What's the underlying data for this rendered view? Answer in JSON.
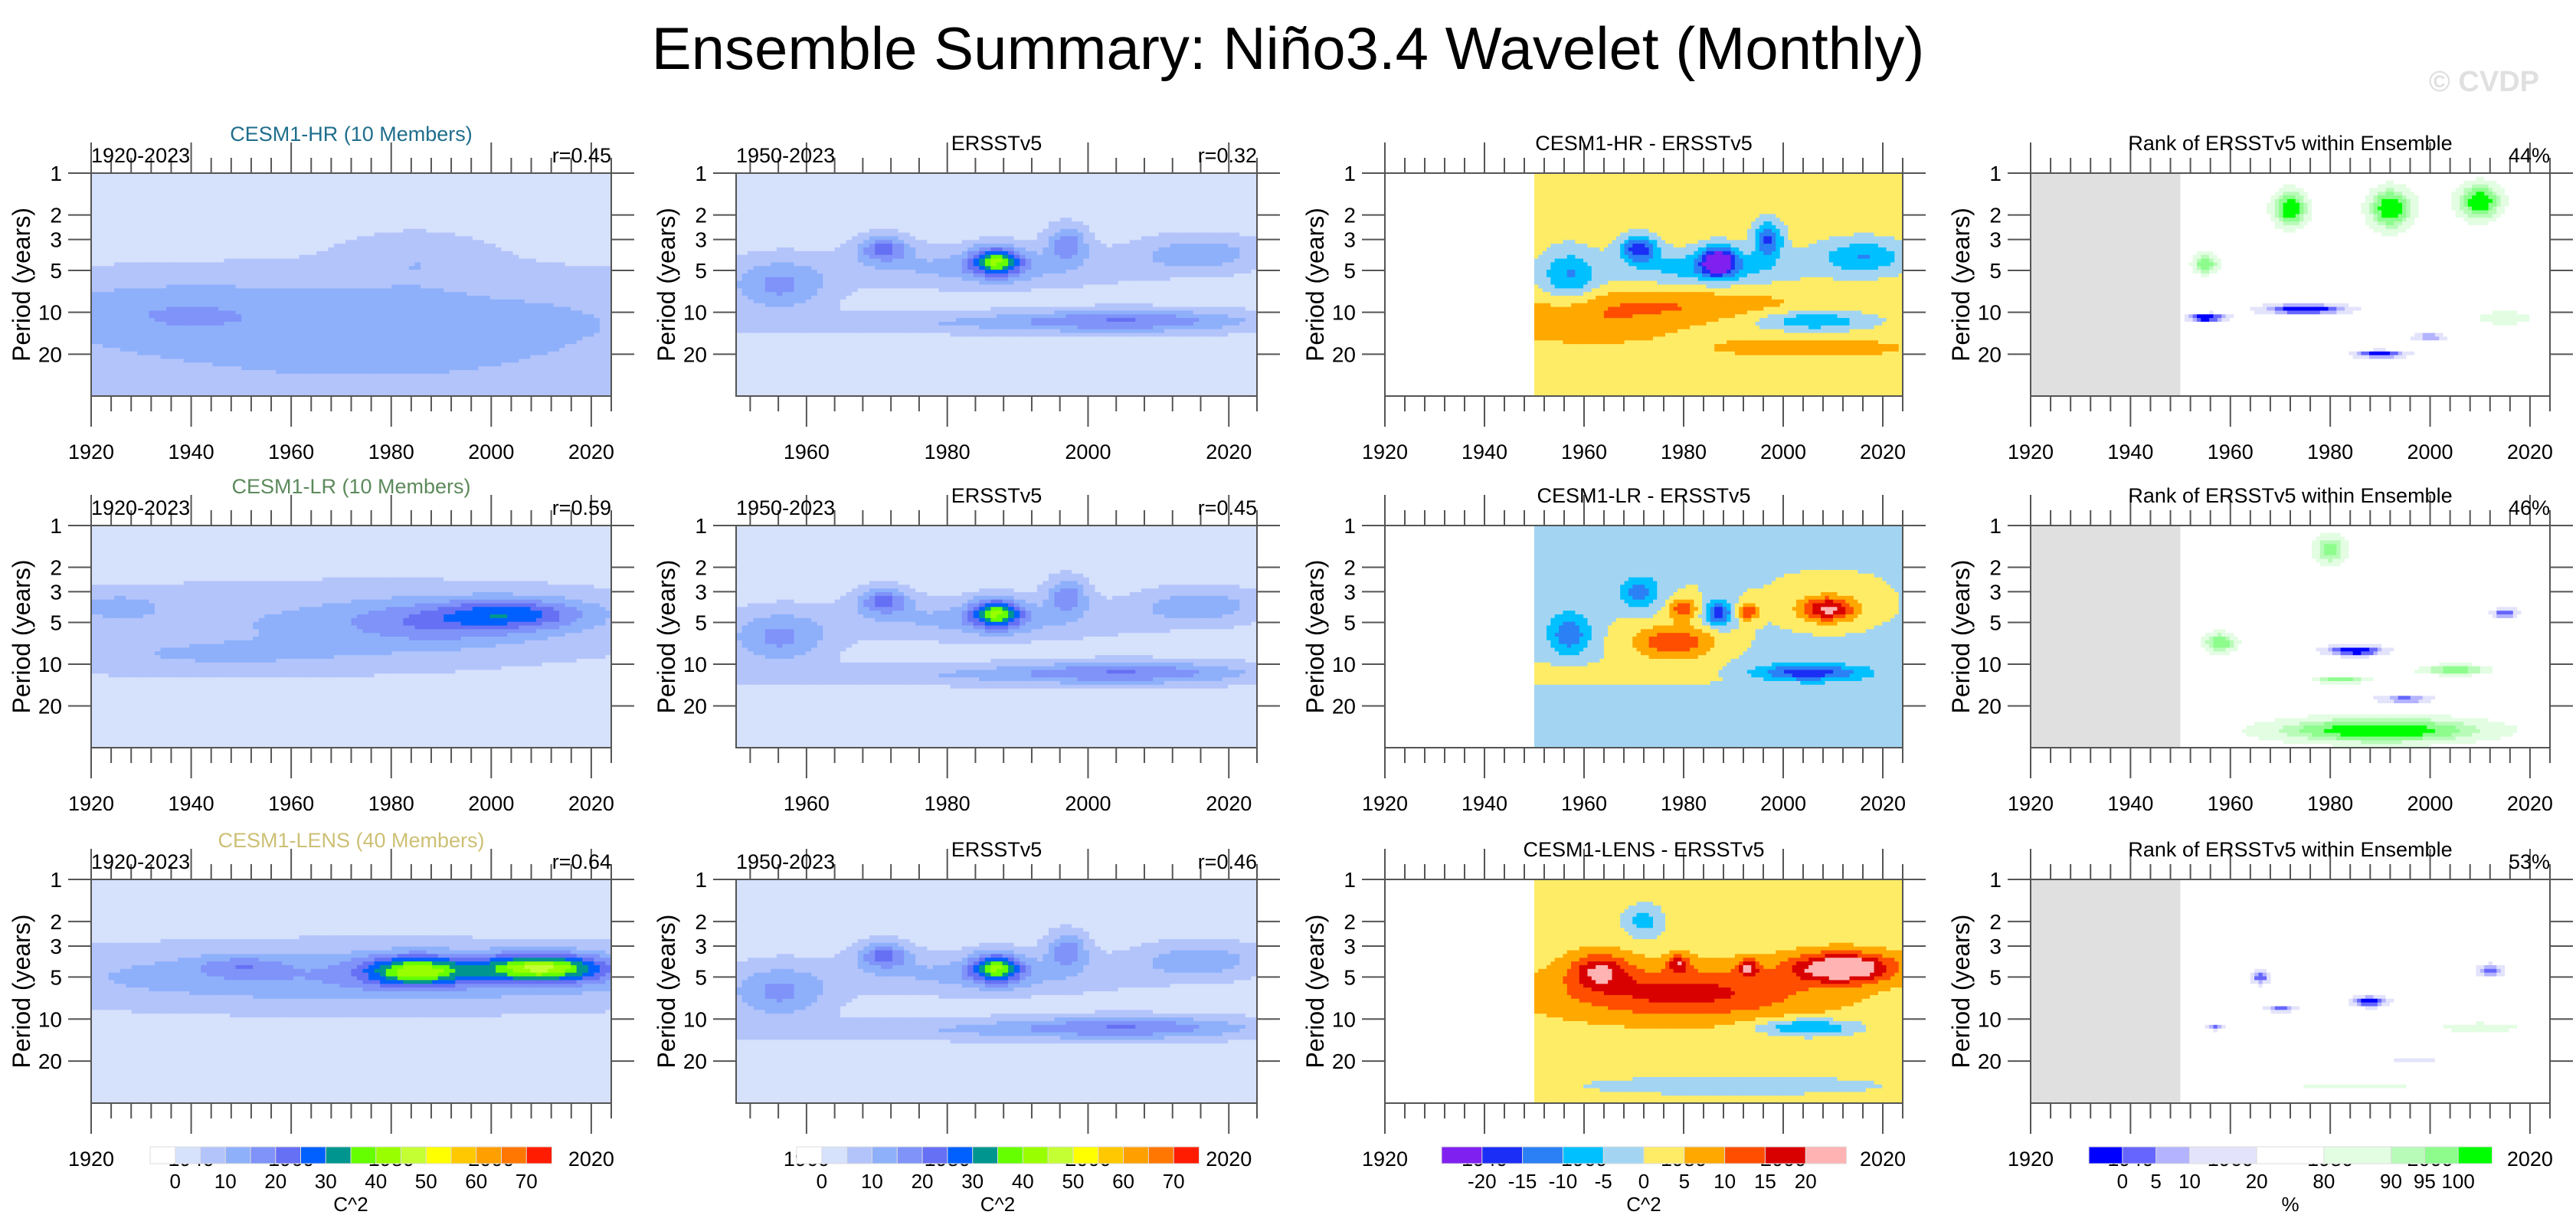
{
  "figure": {
    "title": "Ensemble Summary: Niño3.4 Wavelet (Monthly)",
    "watermark": "© CVDP"
  },
  "colorbars": {
    "power": {
      "label": "C^2",
      "levels": [
        0,
        5,
        10,
        15,
        20,
        25,
        30,
        35,
        40,
        45,
        50,
        55,
        60,
        65,
        70
      ],
      "tick_labels": [
        "0",
        "10",
        "20",
        "30",
        "40",
        "50",
        "60",
        "70"
      ],
      "tick_values": [
        0,
        10,
        20,
        30,
        40,
        50,
        60,
        70
      ],
      "colors": [
        "#ffffff",
        "#d6e1fc",
        "#b3c4fb",
        "#8eb0fb",
        "#7f93f9",
        "#6670f4",
        "#0060ff",
        "#00968f",
        "#66ff00",
        "#99ff00",
        "#c4ff33",
        "#ffff00",
        "#ffc800",
        "#ff9f00",
        "#ff7700",
        "#ff1c00"
      ]
    },
    "difference": {
      "label": "C^2",
      "levels": [
        -20,
        -15,
        -10,
        -5,
        0,
        5,
        10,
        15,
        20
      ],
      "tick_labels": [
        "-20",
        "-15",
        "-10",
        "-5",
        "0",
        "5",
        "10",
        "15",
        "20"
      ],
      "colors": [
        "#8020f0",
        "#1a2ef5",
        "#2b80f5",
        "#00c0ff",
        "#a3d5f2",
        "#ffec66",
        "#ffa800",
        "#ff4e00",
        "#d90000",
        "#ffb3b3"
      ]
    },
    "rank": {
      "label": "%",
      "levels": [
        0,
        5,
        10,
        20,
        80,
        90,
        95,
        100
      ],
      "tick_labels": [
        "0",
        "5",
        "10",
        "20",
        "80",
        "90",
        "95",
        "100"
      ],
      "colors": [
        "#0000ff",
        "#6666ff",
        "#b3b3ff",
        "#e3e3fb",
        "#ffffff",
        "#e3fde3",
        "#b8fbb8",
        "#8dfc8d",
        "#00ff00"
      ]
    }
  },
  "axes": {
    "ylabel": "Period (years)",
    "yticks": [
      1,
      2,
      3,
      5,
      10,
      20
    ],
    "ylim": [
      1,
      40
    ],
    "xticks": [
      1920,
      1940,
      1960,
      1980,
      2000,
      2020
    ],
    "xlim_model": [
      1920,
      2024
    ],
    "xlim_obs": [
      1950,
      2024
    ],
    "obs_start": 1950
  },
  "chart_data": [
    {
      "type": "heatmap",
      "row": 0,
      "col": 0,
      "kind": "power",
      "title": "CESM1-HR (10 Members)",
      "title_color": "#1f6e8c",
      "left_label": "1920-2023",
      "right_label": "r=0.45",
      "xlim": [
        1920,
        2024
      ],
      "ylim": [
        1,
        40
      ],
      "base": 3,
      "features": [
        {
          "year": 1975,
          "period": 11,
          "sx": 60,
          "sp": 0.55,
          "amp": 9
        },
        {
          "year": 1935,
          "period": 10,
          "sx": 18,
          "sp": 0.35,
          "amp": 5
        },
        {
          "year": 1985,
          "period": 4,
          "sx": 10,
          "sp": 0.3,
          "amp": 5
        },
        {
          "year": 1975,
          "period": 30,
          "sx": 60,
          "sp": 0.45,
          "amp": 5
        }
      ]
    },
    {
      "type": "heatmap",
      "row": 0,
      "col": 1,
      "kind": "power",
      "title": "ERSSTv5",
      "title_color": "#000000",
      "left_label": "1950-2023",
      "right_label": "r=0.32",
      "xlim": [
        1950,
        2024
      ],
      "ylim": [
        1,
        40
      ],
      "base": 3,
      "features": [
        {
          "year": 1987,
          "period": 4.3,
          "sx": 2.5,
          "sp": 0.17,
          "amp": 30
        },
        {
          "year": 1971,
          "period": 3.5,
          "sx": 2.5,
          "sp": 0.15,
          "amp": 18
        },
        {
          "year": 1997,
          "period": 3.2,
          "sx": 2,
          "sp": 0.2,
          "amp": 15
        },
        {
          "year": 1985,
          "period": 4.8,
          "sx": 14,
          "sp": 0.22,
          "amp": 9
        },
        {
          "year": 1956,
          "period": 6.5,
          "sx": 5,
          "sp": 0.3,
          "amp": 13
        },
        {
          "year": 2006,
          "period": 11.5,
          "sx": 12,
          "sp": 0.13,
          "amp": 14
        },
        {
          "year": 2016,
          "period": 3.8,
          "sx": 6,
          "sp": 0.2,
          "amp": 11
        },
        {
          "year": 1980,
          "period": 12,
          "sx": 25,
          "sp": 0.12,
          "amp": 6
        }
      ]
    },
    {
      "type": "heatmap",
      "row": 0,
      "col": 2,
      "kind": "difference",
      "title": "CESM1-HR - ERSSTv5",
      "title_color": "#000000",
      "left_label": "",
      "right_label": "",
      "xlim": [
        1920,
        2024
      ],
      "ylim": [
        1,
        40
      ],
      "base": 2,
      "features": [
        {
          "year": 1987,
          "period": 4.3,
          "sx": 2.5,
          "sp": 0.17,
          "amp": -26
        },
        {
          "year": 1971,
          "period": 3.5,
          "sx": 2.5,
          "sp": 0.15,
          "amp": -20
        },
        {
          "year": 1997,
          "period": 3.0,
          "sx": 2,
          "sp": 0.2,
          "amp": -18
        },
        {
          "year": 1985,
          "period": 4.8,
          "sx": 12,
          "sp": 0.2,
          "amp": -10
        },
        {
          "year": 1957,
          "period": 5.5,
          "sx": 4,
          "sp": 0.3,
          "amp": -12
        },
        {
          "year": 2016,
          "period": 4,
          "sx": 6,
          "sp": 0.2,
          "amp": -12
        },
        {
          "year": 2006,
          "period": 11.5,
          "sx": 8,
          "sp": 0.12,
          "amp": -12
        },
        {
          "year": 1975,
          "period": 9,
          "sx": 20,
          "sp": 0.2,
          "amp": 8
        },
        {
          "year": 1960,
          "period": 13,
          "sx": 12,
          "sp": 0.2,
          "amp": 6
        },
        {
          "year": 2005,
          "period": 18,
          "sx": 18,
          "sp": 0.15,
          "amp": 5
        }
      ]
    },
    {
      "type": "heatmap",
      "row": 0,
      "col": 3,
      "kind": "rank",
      "title": "Rank of ERSSTv5 within Ensemble",
      "title_color": "#000000",
      "left_label": "",
      "right_label": "44%",
      "xlim": [
        1920,
        2024
      ],
      "ylim": [
        1,
        40
      ],
      "base": 50,
      "features": [
        {
          "year": 1972,
          "period": 1.8,
          "sx": 4,
          "sp": 0.35,
          "amp": 55
        },
        {
          "year": 1992,
          "period": 1.8,
          "sx": 5,
          "sp": 0.4,
          "amp": 55
        },
        {
          "year": 2010,
          "period": 1.6,
          "sx": 5,
          "sp": 0.35,
          "amp": 55
        },
        {
          "year": 1955,
          "period": 4.5,
          "sx": 3,
          "sp": 0.2,
          "amp": 50
        },
        {
          "year": 1975,
          "period": 9.5,
          "sx": 10,
          "sp": 0.1,
          "amp": -55
        },
        {
          "year": 1955,
          "period": 11,
          "sx": 4,
          "sp": 0.07,
          "amp": -55
        },
        {
          "year": 1990,
          "period": 20,
          "sx": 6,
          "sp": 0.07,
          "amp": -55
        },
        {
          "year": 2000,
          "period": 15,
          "sx": 4,
          "sp": 0.06,
          "amp": -50
        },
        {
          "year": 2015,
          "period": 11,
          "sx": 8,
          "sp": 0.15,
          "amp": 38
        }
      ]
    },
    {
      "type": "heatmap",
      "row": 1,
      "col": 0,
      "kind": "power",
      "title": "CESM1-LR (10 Members)",
      "title_color": "#5c8a5c",
      "left_label": "1920-2023",
      "right_label": "r=0.59",
      "xlim": [
        1920,
        2024
      ],
      "ylim": [
        1,
        40
      ],
      "base": 3,
      "features": [
        {
          "year": 2005,
          "period": 4.3,
          "sx": 10,
          "sp": 0.17,
          "amp": 16
        },
        {
          "year": 1990,
          "period": 5,
          "sx": 14,
          "sp": 0.25,
          "amp": 11
        },
        {
          "year": 1970,
          "period": 5,
          "sx": 50,
          "sp": 0.45,
          "amp": 7
        },
        {
          "year": 1925,
          "period": 3.8,
          "sx": 6,
          "sp": 0.15,
          "amp": 6
        },
        {
          "year": 1945,
          "period": 9,
          "sx": 30,
          "sp": 0.2,
          "amp": 5
        }
      ]
    },
    {
      "type": "heatmap",
      "row": 1,
      "col": 1,
      "kind": "power",
      "title": "ERSSTv5",
      "title_color": "#000000",
      "left_label": "1950-2023",
      "right_label": "r=0.45",
      "xlim": [
        1950,
        2024
      ],
      "ylim": [
        1,
        40
      ],
      "base": 3,
      "features": [
        {
          "year": 1987,
          "period": 4.3,
          "sx": 2.5,
          "sp": 0.17,
          "amp": 30
        },
        {
          "year": 1971,
          "period": 3.5,
          "sx": 2.5,
          "sp": 0.15,
          "amp": 18
        },
        {
          "year": 1997,
          "period": 3.2,
          "sx": 2,
          "sp": 0.2,
          "amp": 15
        },
        {
          "year": 1985,
          "period": 4.8,
          "sx": 14,
          "sp": 0.22,
          "amp": 9
        },
        {
          "year": 1956,
          "period": 6.5,
          "sx": 5,
          "sp": 0.3,
          "amp": 13
        },
        {
          "year": 2006,
          "period": 11.5,
          "sx": 12,
          "sp": 0.13,
          "amp": 14
        },
        {
          "year": 2016,
          "period": 3.8,
          "sx": 6,
          "sp": 0.2,
          "amp": 11
        },
        {
          "year": 1980,
          "period": 12,
          "sx": 25,
          "sp": 0.12,
          "amp": 6
        }
      ]
    },
    {
      "type": "heatmap",
      "row": 1,
      "col": 2,
      "kind": "difference",
      "title": "CESM1-LR - ERSSTv5",
      "title_color": "#000000",
      "left_label": "",
      "right_label": "",
      "xlim": [
        1920,
        2024
      ],
      "ylim": [
        1,
        40
      ],
      "base": 0,
      "features": [
        {
          "year": 2009,
          "period": 4,
          "sx": 4,
          "sp": 0.15,
          "amp": 22
        },
        {
          "year": 1978,
          "period": 7,
          "sx": 6,
          "sp": 0.2,
          "amp": 15
        },
        {
          "year": 1980,
          "period": 4,
          "sx": 2,
          "sp": 0.12,
          "amp": 14
        },
        {
          "year": 1993,
          "period": 4.2,
          "sx": 1.5,
          "sp": 0.1,
          "amp": 15
        },
        {
          "year": 1987,
          "period": 4.3,
          "sx": 2,
          "sp": 0.15,
          "amp": -18
        },
        {
          "year": 1957,
          "period": 6,
          "sx": 3,
          "sp": 0.25,
          "amp": -14
        },
        {
          "year": 1971,
          "period": 3,
          "sx": 3,
          "sp": 0.2,
          "amp": -12
        },
        {
          "year": 2005,
          "period": 11.5,
          "sx": 8,
          "sp": 0.1,
          "amp": -18
        },
        {
          "year": 1990,
          "period": 22,
          "sx": 40,
          "sp": 0.6,
          "amp": -3
        },
        {
          "year": 1970,
          "period": 12,
          "sx": 25,
          "sp": 0.15,
          "amp": 4
        }
      ]
    },
    {
      "type": "heatmap",
      "row": 1,
      "col": 3,
      "kind": "rank",
      "title": "Rank of ERSSTv5 within Ensemble",
      "title_color": "#000000",
      "left_label": "",
      "right_label": "46%",
      "xlim": [
        1920,
        2024
      ],
      "ylim": [
        1,
        40
      ],
      "base": 50,
      "features": [
        {
          "year": 1990,
          "period": 30,
          "sx": 25,
          "sp": 0.25,
          "amp": 55
        },
        {
          "year": 1985,
          "period": 8,
          "sx": 7,
          "sp": 0.1,
          "amp": -55
        },
        {
          "year": 1995,
          "period": 18,
          "sx": 7,
          "sp": 0.08,
          "amp": -55
        },
        {
          "year": 2005,
          "period": 11,
          "sx": 8,
          "sp": 0.1,
          "amp": 50
        },
        {
          "year": 1958,
          "period": 7,
          "sx": 4,
          "sp": 0.2,
          "amp": 50
        },
        {
          "year": 1980,
          "period": 1.5,
          "sx": 4,
          "sp": 0.3,
          "amp": 48
        },
        {
          "year": 2015,
          "period": 4.3,
          "sx": 3,
          "sp": 0.1,
          "amp": -50
        },
        {
          "year": 1982,
          "period": 13,
          "sx": 6,
          "sp": 0.06,
          "amp": 50
        }
      ]
    },
    {
      "type": "heatmap",
      "row": 2,
      "col": 0,
      "kind": "power",
      "title": "CESM1-LENS (40 Members)",
      "title_color": "#cdc075",
      "left_label": "1920-2023",
      "right_label": "r=0.64",
      "xlim": [
        1920,
        2024
      ],
      "ylim": [
        1,
        40
      ],
      "base": 3,
      "features": [
        {
          "year": 2010,
          "period": 4.3,
          "sx": 9,
          "sp": 0.16,
          "amp": 35
        },
        {
          "year": 1985,
          "period": 4.5,
          "sx": 7,
          "sp": 0.17,
          "amp": 30
        },
        {
          "year": 1975,
          "period": 5,
          "sx": 50,
          "sp": 0.35,
          "amp": 12
        },
        {
          "year": 1950,
          "period": 4.2,
          "sx": 6,
          "sp": 0.12,
          "amp": 8
        }
      ]
    },
    {
      "type": "heatmap",
      "row": 2,
      "col": 1,
      "kind": "power",
      "title": "ERSSTv5",
      "title_color": "#000000",
      "left_label": "1950-2023",
      "right_label": "r=0.46",
      "xlim": [
        1950,
        2024
      ],
      "ylim": [
        1,
        40
      ],
      "base": 3,
      "features": [
        {
          "year": 1987,
          "period": 4.3,
          "sx": 2.5,
          "sp": 0.17,
          "amp": 30
        },
        {
          "year": 1971,
          "period": 3.5,
          "sx": 2.5,
          "sp": 0.15,
          "amp": 18
        },
        {
          "year": 1997,
          "period": 3.2,
          "sx": 2,
          "sp": 0.2,
          "amp": 15
        },
        {
          "year": 1985,
          "period": 4.8,
          "sx": 14,
          "sp": 0.22,
          "amp": 9
        },
        {
          "year": 1956,
          "period": 6.5,
          "sx": 5,
          "sp": 0.3,
          "amp": 13
        },
        {
          "year": 2006,
          "period": 11.5,
          "sx": 12,
          "sp": 0.13,
          "amp": 14
        },
        {
          "year": 2016,
          "period": 3.8,
          "sx": 6,
          "sp": 0.2,
          "amp": 11
        },
        {
          "year": 1980,
          "period": 12,
          "sx": 25,
          "sp": 0.12,
          "amp": 6
        }
      ]
    },
    {
      "type": "heatmap",
      "row": 2,
      "col": 2,
      "kind": "difference",
      "title": "CESM1-LENS - ERSSTv5",
      "title_color": "#000000",
      "left_label": "",
      "right_label": "",
      "xlim": [
        1920,
        2024
      ],
      "ylim": [
        1,
        40
      ],
      "base": 3,
      "features": [
        {
          "year": 2012,
          "period": 4.3,
          "sx": 7,
          "sp": 0.17,
          "amp": 26
        },
        {
          "year": 1980,
          "period": 6.5,
          "sx": 18,
          "sp": 0.3,
          "amp": 14
        },
        {
          "year": 1963,
          "period": 4.5,
          "sx": 4,
          "sp": 0.2,
          "amp": 15
        },
        {
          "year": 1979,
          "period": 4,
          "sx": 1.5,
          "sp": 0.1,
          "amp": 14
        },
        {
          "year": 1993,
          "period": 4.3,
          "sx": 1.5,
          "sp": 0.1,
          "amp": 14
        },
        {
          "year": 2005,
          "period": 11.5,
          "sx": 7,
          "sp": 0.1,
          "amp": -14
        },
        {
          "year": 1972,
          "period": 2,
          "sx": 3,
          "sp": 0.2,
          "amp": -10
        },
        {
          "year": 1990,
          "period": 30,
          "sx": 40,
          "sp": 0.2,
          "amp": -4
        }
      ]
    },
    {
      "type": "heatmap",
      "row": 2,
      "col": 3,
      "kind": "rank",
      "title": "Rank of ERSSTv5 within Ensemble",
      "title_color": "#000000",
      "left_label": "",
      "right_label": "53%",
      "xlim": [
        1920,
        2024
      ],
      "ylim": [
        1,
        40
      ],
      "base": 50,
      "features": [
        {
          "year": 1988,
          "period": 7.5,
          "sx": 4,
          "sp": 0.1,
          "amp": -55
        },
        {
          "year": 1970,
          "period": 8.5,
          "sx": 4,
          "sp": 0.05,
          "amp": -50
        },
        {
          "year": 1966,
          "period": 5,
          "sx": 2,
          "sp": 0.15,
          "amp": -50
        },
        {
          "year": 2012,
          "period": 4.5,
          "sx": 3,
          "sp": 0.12,
          "amp": -50
        },
        {
          "year": 1957,
          "period": 11.5,
          "sx": 2,
          "sp": 0.05,
          "amp": -48
        },
        {
          "year": 1997,
          "period": 20,
          "sx": 6,
          "sp": 0.06,
          "amp": -40
        },
        {
          "year": 2010,
          "period": 11.5,
          "sx": 10,
          "sp": 0.1,
          "amp": 40
        },
        {
          "year": 1985,
          "period": 30,
          "sx": 30,
          "sp": 0.1,
          "amp": 32
        }
      ]
    }
  ]
}
